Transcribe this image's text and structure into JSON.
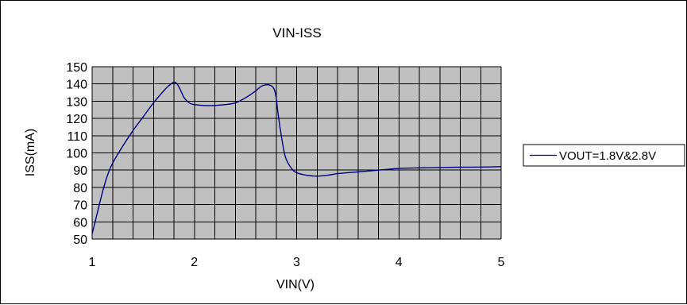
{
  "chart_data": {
    "type": "line",
    "title": "VIN-ISS",
    "xlabel": "VIN(V)",
    "ylabel": "ISS(mA)",
    "xlim": [
      1,
      5
    ],
    "ylim": [
      50,
      150
    ],
    "x_ticks": [
      1,
      2,
      3,
      4,
      5
    ],
    "y_ticks": [
      50,
      60,
      70,
      80,
      90,
      100,
      110,
      120,
      130,
      140,
      150
    ],
    "x_minor_step": 0.2,
    "grid": true,
    "legend_position": "right",
    "plot_background": "#c0c0c0",
    "grid_color": "#000000",
    "series": [
      {
        "name": "VOUT=1.8V&2.8V",
        "color": "#000080",
        "x": [
          1.0,
          1.05,
          1.1,
          1.15,
          1.2,
          1.3,
          1.4,
          1.5,
          1.6,
          1.7,
          1.75,
          1.8,
          1.83,
          1.86,
          1.9,
          1.95,
          2.0,
          2.1,
          2.2,
          2.3,
          2.4,
          2.5,
          2.6,
          2.65,
          2.7,
          2.75,
          2.78,
          2.8,
          2.82,
          2.85,
          2.88,
          2.9,
          2.95,
          3.0,
          3.1,
          3.2,
          3.3,
          3.4,
          3.5,
          3.6,
          3.7,
          3.8,
          3.9,
          4.0,
          4.2,
          4.4,
          4.6,
          4.8,
          5.0
        ],
        "y": [
          53,
          65,
          77,
          87,
          94,
          104,
          113,
          121,
          129,
          136,
          139,
          141,
          140,
          137,
          132,
          129,
          128,
          127.5,
          127.5,
          128,
          129,
          132,
          136,
          138.5,
          139.5,
          139,
          137,
          132,
          122,
          110,
          100,
          96,
          91,
          88.5,
          87,
          86.5,
          87,
          88,
          88.5,
          89,
          89.5,
          90,
          90.5,
          91,
          91.3,
          91.5,
          91.7,
          91.8,
          92
        ]
      }
    ]
  }
}
